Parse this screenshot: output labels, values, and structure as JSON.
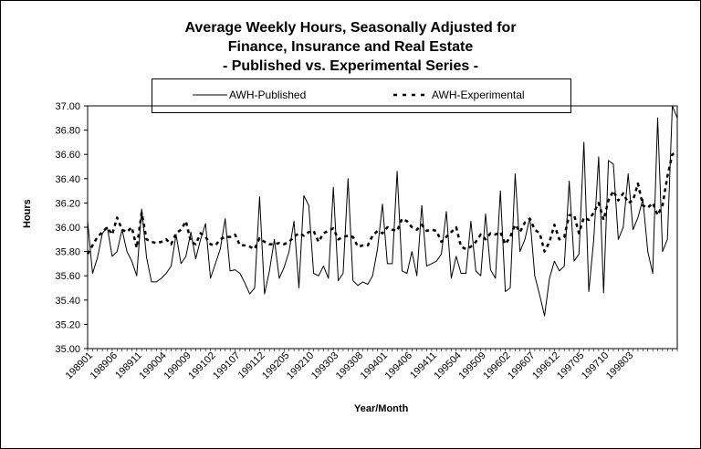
{
  "chart_data": {
    "type": "line",
    "title": "Average Weekly Hours, Seasonally Adjusted for",
    "subtitle_line2": "Finance, Insurance and Real Estate",
    "subtitle_line3": "- Published vs. Experimental Series -",
    "xlabel": "Year/Month",
    "ylabel": "Hours",
    "ylim": [
      35.0,
      37.0
    ],
    "yticks": [
      "35.00",
      "35.20",
      "35.40",
      "35.60",
      "35.80",
      "36.00",
      "36.20",
      "36.40",
      "36.60",
      "36.80",
      "37.00"
    ],
    "xtick_labels": [
      "198901",
      "198906",
      "198911",
      "199004",
      "199009",
      "199102",
      "199107",
      "199112",
      "199205",
      "199210",
      "199303",
      "199308",
      "199401",
      "199406",
      "199411",
      "199504",
      "199509",
      "199602",
      "199607",
      "199612",
      "199705",
      "199710",
      "199803"
    ],
    "x_start": "1989-01",
    "legend_position": "top",
    "grid": false,
    "series": [
      {
        "name": "AWH-Published",
        "style": "solid",
        "color": "#000000",
        "values": [
          36.05,
          35.62,
          35.75,
          35.95,
          36.0,
          35.76,
          35.8,
          35.98,
          35.8,
          35.72,
          35.6,
          36.15,
          35.75,
          35.55,
          35.55,
          35.58,
          35.62,
          35.68,
          35.94,
          35.7,
          35.76,
          35.96,
          35.74,
          35.9,
          36.03,
          35.58,
          35.7,
          35.82,
          36.07,
          35.64,
          35.65,
          35.62,
          35.54,
          35.45,
          35.5,
          36.25,
          35.45,
          35.64,
          35.9,
          35.58,
          35.67,
          35.8,
          36.05,
          35.5,
          36.26,
          36.18,
          35.62,
          35.6,
          35.68,
          35.58,
          36.33,
          35.56,
          35.62,
          36.4,
          35.56,
          35.52,
          35.55,
          35.53,
          35.6,
          35.82,
          36.19,
          35.7,
          35.7,
          36.46,
          35.64,
          35.62,
          35.8,
          35.6,
          36.18,
          35.68,
          35.7,
          35.72,
          35.78,
          36.13,
          35.58,
          35.76,
          35.62,
          35.62,
          36.05,
          35.64,
          35.6,
          36.11,
          35.65,
          35.58,
          36.3,
          35.47,
          35.5,
          36.44,
          35.8,
          35.9,
          36.08,
          35.6,
          35.44,
          35.27,
          35.58,
          35.72,
          35.64,
          35.68,
          36.38,
          35.72,
          35.78,
          36.7,
          35.47,
          35.9,
          36.58,
          35.46,
          36.55,
          36.52,
          35.9,
          36.0,
          36.44,
          35.98,
          36.08,
          36.23,
          35.8,
          35.62,
          36.9,
          35.8,
          35.9,
          37.0,
          36.9
        ]
      },
      {
        "name": "AWH-Experimental",
        "style": "dashed",
        "color": "#000000",
        "values": [
          35.78,
          35.85,
          35.92,
          35.96,
          36.0,
          35.94,
          36.08,
          35.98,
          35.96,
          36.0,
          35.83,
          36.12,
          35.9,
          35.88,
          35.87,
          35.88,
          35.9,
          35.86,
          35.95,
          35.98,
          36.05,
          35.88,
          35.86,
          35.95,
          35.92,
          35.86,
          35.85,
          35.9,
          35.92,
          35.92,
          35.94,
          35.85,
          35.85,
          35.84,
          35.82,
          35.91,
          35.88,
          35.86,
          35.86,
          35.87,
          35.86,
          35.88,
          35.92,
          35.95,
          35.93,
          35.96,
          35.97,
          35.88,
          35.95,
          35.97,
          35.99,
          35.9,
          35.92,
          35.93,
          35.92,
          35.84,
          35.85,
          35.85,
          35.93,
          35.97,
          35.95,
          36.0,
          35.98,
          35.97,
          36.07,
          36.05,
          36.0,
          35.98,
          36.02,
          35.97,
          35.98,
          35.97,
          35.88,
          35.92,
          35.96,
          36.0,
          35.84,
          35.82,
          35.84,
          35.88,
          35.94,
          35.9,
          35.95,
          35.94,
          35.96,
          35.86,
          35.92,
          36.02,
          35.96,
          36.04,
          36.07,
          35.98,
          35.95,
          35.8,
          35.88,
          36.02,
          35.9,
          35.92,
          36.1,
          36.1,
          35.95,
          36.08,
          36.06,
          36.12,
          36.2,
          36.06,
          36.22,
          36.3,
          36.22,
          36.28,
          36.2,
          36.22,
          36.36,
          36.18,
          36.16,
          36.2,
          36.1,
          36.18,
          36.42,
          36.6,
          36.62
        ]
      }
    ]
  }
}
